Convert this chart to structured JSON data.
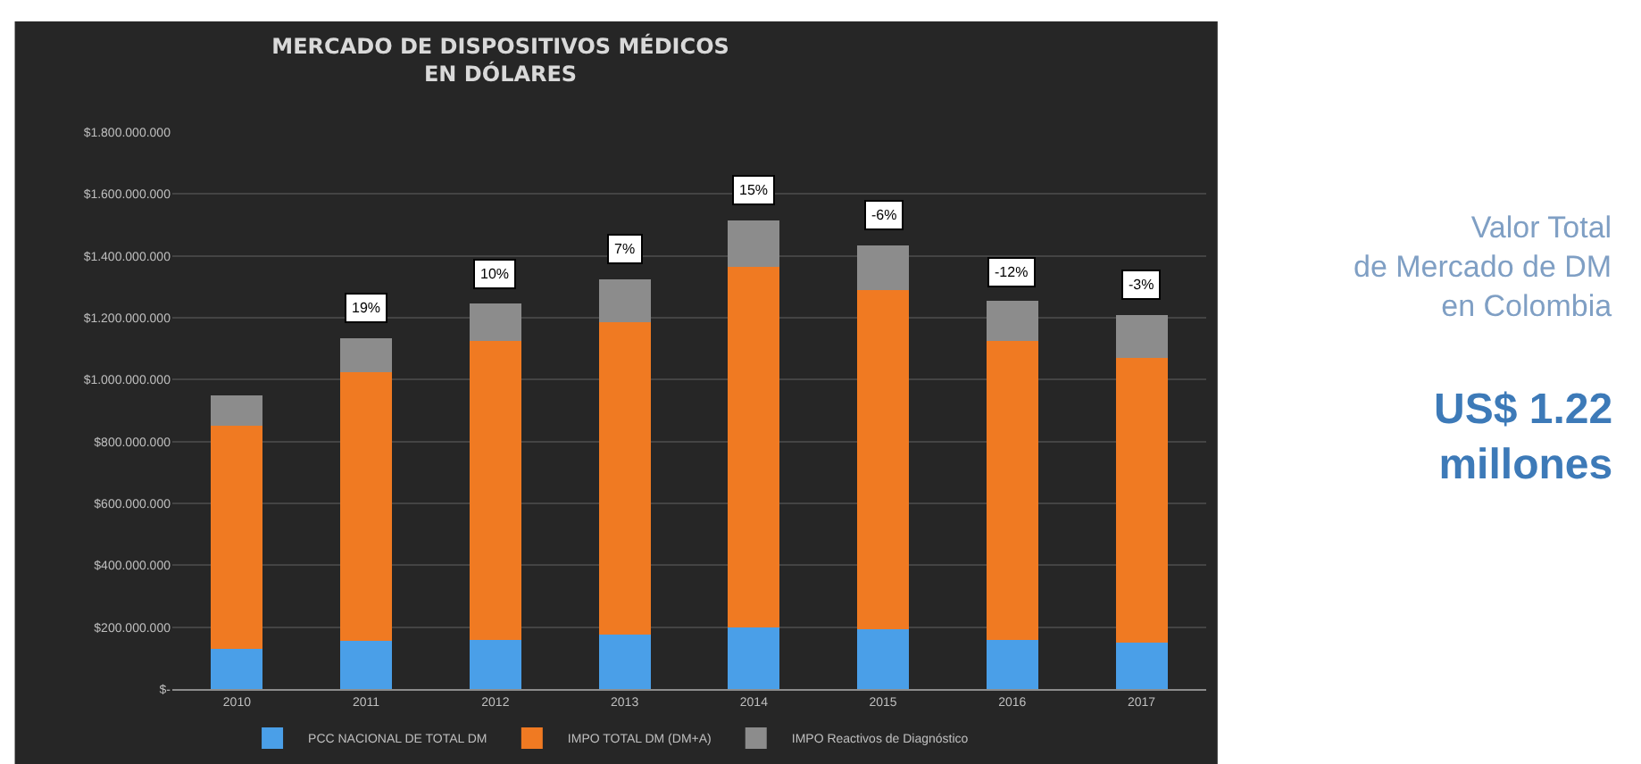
{
  "chart_data": {
    "type": "bar",
    "stacked": true,
    "title": "MERCADO DE DISPOSITIVOS MÉDICOS\nEN DÓLARES",
    "categories": [
      "2010",
      "2011",
      "2012",
      "2013",
      "2014",
      "2015",
      "2016",
      "2017"
    ],
    "series": [
      {
        "name": "PCC NACIONAL DE TOTAL DM",
        "color": "#4a9fe8",
        "values": [
          130000000,
          155000000,
          160000000,
          175000000,
          200000000,
          195000000,
          160000000,
          150000000
        ]
      },
      {
        "name": "IMPO TOTAL DM (DM+A)",
        "color": "#f07a22",
        "values": [
          720000000,
          870000000,
          965000000,
          1010000000,
          1165000000,
          1095000000,
          965000000,
          920000000
        ]
      },
      {
        "name": "IMPO Reactivos de Diagnóstico",
        "color": "#8c8c8c",
        "values": [
          100000000,
          110000000,
          120000000,
          140000000,
          150000000,
          145000000,
          130000000,
          140000000
        ]
      }
    ],
    "ylim": [
      0,
      1800000000
    ],
    "yticks": [
      {
        "value": 0,
        "label": "$-"
      },
      {
        "value": 200000000,
        "label": "$200.000.000"
      },
      {
        "value": 400000000,
        "label": "$400.000.000"
      },
      {
        "value": 600000000,
        "label": "$600.000.000"
      },
      {
        "value": 800000000,
        "label": "$800.000.000"
      },
      {
        "value": 1000000000,
        "label": "$1.000.000.000"
      },
      {
        "value": 1200000000,
        "label": "$1.200.000.000"
      },
      {
        "value": 1400000000,
        "label": "$1.400.000.000"
      },
      {
        "value": 1600000000,
        "label": "$1.600.000.000"
      },
      {
        "value": 1800000000,
        "label": "$1.800.000.000"
      }
    ],
    "grid": "y",
    "legend": "bottom",
    "annotations": [
      {
        "text": "19%",
        "x": "2011",
        "y": 1135000000
      },
      {
        "text": "10%",
        "x": "2012",
        "y": 1245000000
      },
      {
        "text": "7%",
        "x": "2013",
        "y": 1325000000
      },
      {
        "text": "15%",
        "x": "2014",
        "y": 1515000000
      },
      {
        "text": "-6%",
        "x": "2015",
        "y": 1435000000
      },
      {
        "text": "-12%",
        "x": "2016",
        "y": 1255000000
      },
      {
        "text": "-3%",
        "x": "2017",
        "y": 1210000000
      },
      "Valor Total\nde Mercado de DM\nen Colombia",
      "US$ 1.22\nmillones"
    ]
  }
}
